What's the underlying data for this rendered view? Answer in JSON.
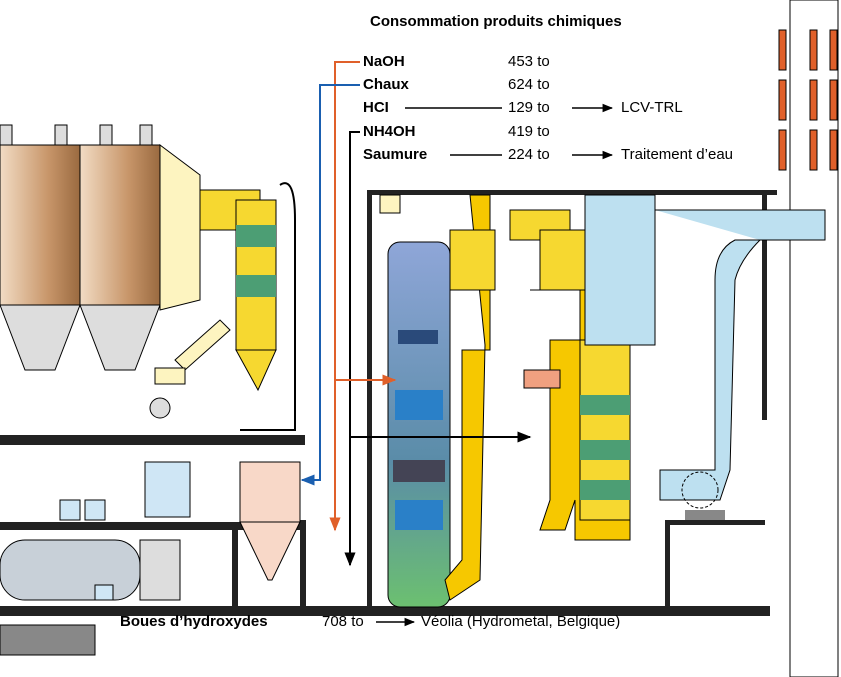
{
  "title": "Consommation produits chimiques",
  "items": [
    {
      "label": "NaOH",
      "amount": "453 to"
    },
    {
      "label": "Chaux",
      "amount": "624 to"
    },
    {
      "label": "HCI",
      "amount": "129 to",
      "destination": "LCV-TRL"
    },
    {
      "label": "NH4OH",
      "amount": "419 to"
    },
    {
      "label": "Saumure",
      "amount": "224 to",
      "destination": "Traitement d’eau"
    }
  ],
  "residue": {
    "label": "Boues d’hydroxydes",
    "amount": "708 to",
    "destination": "Véolia (Hydrometal, Belgique)"
  }
}
